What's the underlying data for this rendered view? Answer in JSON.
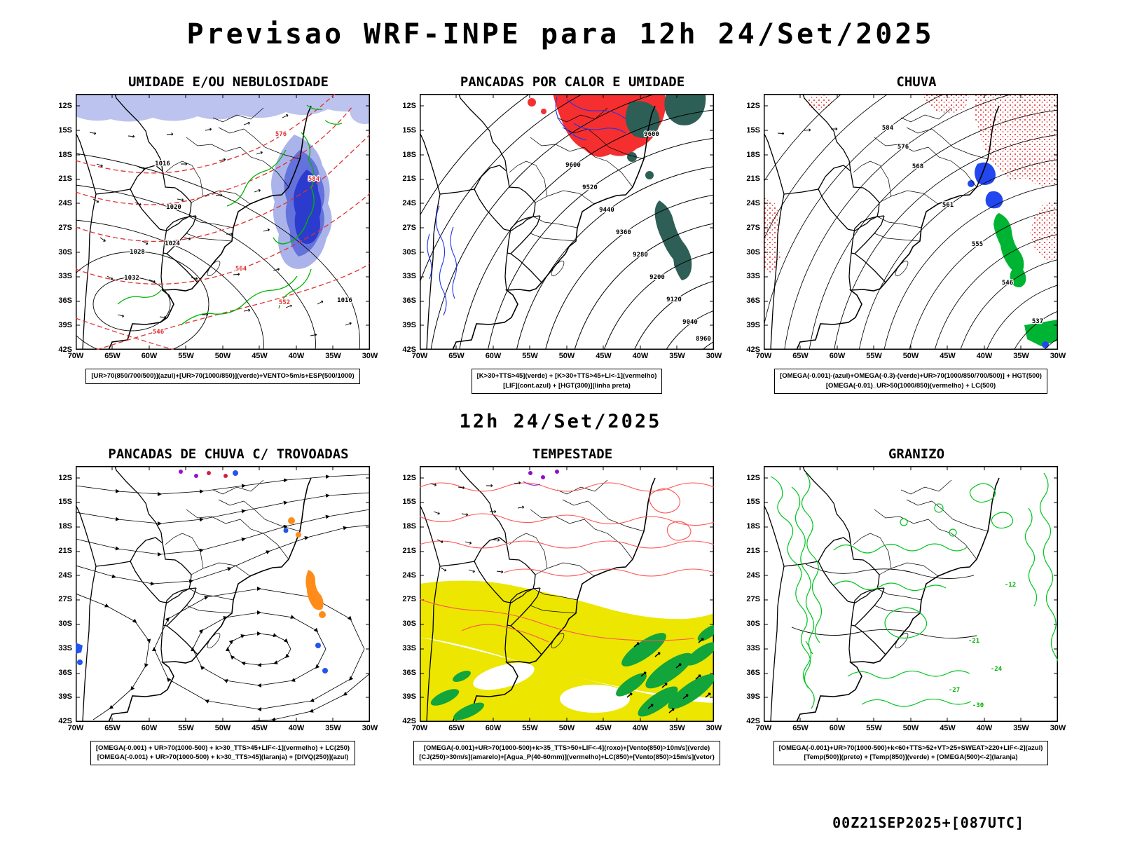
{
  "page": {
    "title": "Previsao WRF-INPE  para 12h 24/Set/2025",
    "subtitle": "12h 24/Set/2025",
    "footer": "00Z21SEP2025+[087UTC]"
  },
  "axes": {
    "lat": [
      "12S",
      "15S",
      "18S",
      "21S",
      "24S",
      "27S",
      "30S",
      "33S",
      "36S",
      "39S",
      "42S"
    ],
    "lon": [
      "70W",
      "65W",
      "60W",
      "55W",
      "50W",
      "45W",
      "40W",
      "35W",
      "30W"
    ]
  },
  "panels": [
    {
      "title": "UMIDADE E/OU NEBULOSIDADE",
      "captions": [
        "[UR>70(850/700/500)](azul)+[UR>70(1000/850)](verde)+VENTO>5m/s+ESP(500/1000)"
      ],
      "labels": [
        {
          "t": "1016"
        },
        {
          "t": "1020"
        },
        {
          "t": "1024"
        },
        {
          "t": "1028"
        },
        {
          "t": "1032"
        },
        {
          "t": "1016"
        },
        {
          "t": "576"
        },
        {
          "t": "584"
        },
        {
          "t": "564"
        },
        {
          "t": "552"
        },
        {
          "t": "546"
        }
      ]
    },
    {
      "title": "PANCADAS POR CALOR E UMIDADE",
      "captions": [
        "[K>30+TTS>45](verde) + [K>30+TTS>45+LI<-1](vermelho)",
        "[LIF](cont.azul) + [HGT(300)](linha preta)"
      ],
      "labels": [
        {
          "t": "8960"
        },
        {
          "t": "9040"
        },
        {
          "t": "9120"
        },
        {
          "t": "9200"
        },
        {
          "t": "9280"
        },
        {
          "t": "9360"
        },
        {
          "t": "9440"
        },
        {
          "t": "9520"
        },
        {
          "t": "9600"
        },
        {
          "t": "9600"
        }
      ]
    },
    {
      "title": "CHUVA",
      "captions": [
        "[OMEGA(-0.001)-(azul)+OMEGA(-0.3)-(verde)+UR>70(1000/850/700/500)] + HGT(500)",
        "[OMEGA(-0.01)_UR>50(1000/850)(vermelho) + LC(500)"
      ],
      "labels": [
        {
          "t": "537"
        },
        {
          "t": "546"
        },
        {
          "t": "555"
        },
        {
          "t": "561"
        },
        {
          "t": "568"
        },
        {
          "t": "576"
        },
        {
          "t": "584"
        }
      ]
    },
    {
      "title": "PANCADAS DE CHUVA C/ TROVOADAS",
      "captions": [
        "[OMEGA(-0.001) + UR>70(1000-500) + k>30_TTS>45+LIF<-1](vermelho) + LC(250)",
        "[OMEGA(-0.001) + UR>70(1000-500) + k>30_TTS>45](laranja) + [DIVQ(250)](azul)"
      ],
      "labels": []
    },
    {
      "title": "TEMPESTADE",
      "captions": [
        "[OMEGA(-0.001)+UR>70(1000-500)+k>35_TTS>50+LIF<-4](roxo)+[Vento(850)>10m/s](verde)",
        "[CJ(250)>30m/s](amarelo)+[Agua_P(40-60mm)](vermelho)+LC(850)+[Vento(850)>15m/s](vetor)"
      ],
      "labels": []
    },
    {
      "title": "GRANIZO",
      "captions": [
        "[OMEGA(-0.001)+UR>70(1000-500)+k<60+TTS>52+VT>25+SWEAT>220+LIF<-2](azul)",
        "[Temp(500)](preto) + [Temp(850)](verde) + [OMEGA(500)<-2](laranja)"
      ],
      "labels": [
        {
          "t": "-12"
        },
        {
          "t": "-21"
        },
        {
          "t": "-24"
        },
        {
          "t": "-27"
        },
        {
          "t": "-30"
        }
      ]
    }
  ],
  "colors": {
    "contour_black": "#000000",
    "contour_red": "#e03030",
    "contour_green": "#00b400",
    "contour_blue": "#2233ee",
    "shade_lavender": "#bcc3ef",
    "shade_blue": "#6472dc",
    "shade_deep_blue": "#2b3bce",
    "fill_red": "#f52f2f",
    "fill_teal": "#2e5f57",
    "fill_orange": "#ff8c1a",
    "fill_yellow": "#ece600",
    "fill_green": "#12a53c",
    "hail_green": "#00c41e"
  }
}
